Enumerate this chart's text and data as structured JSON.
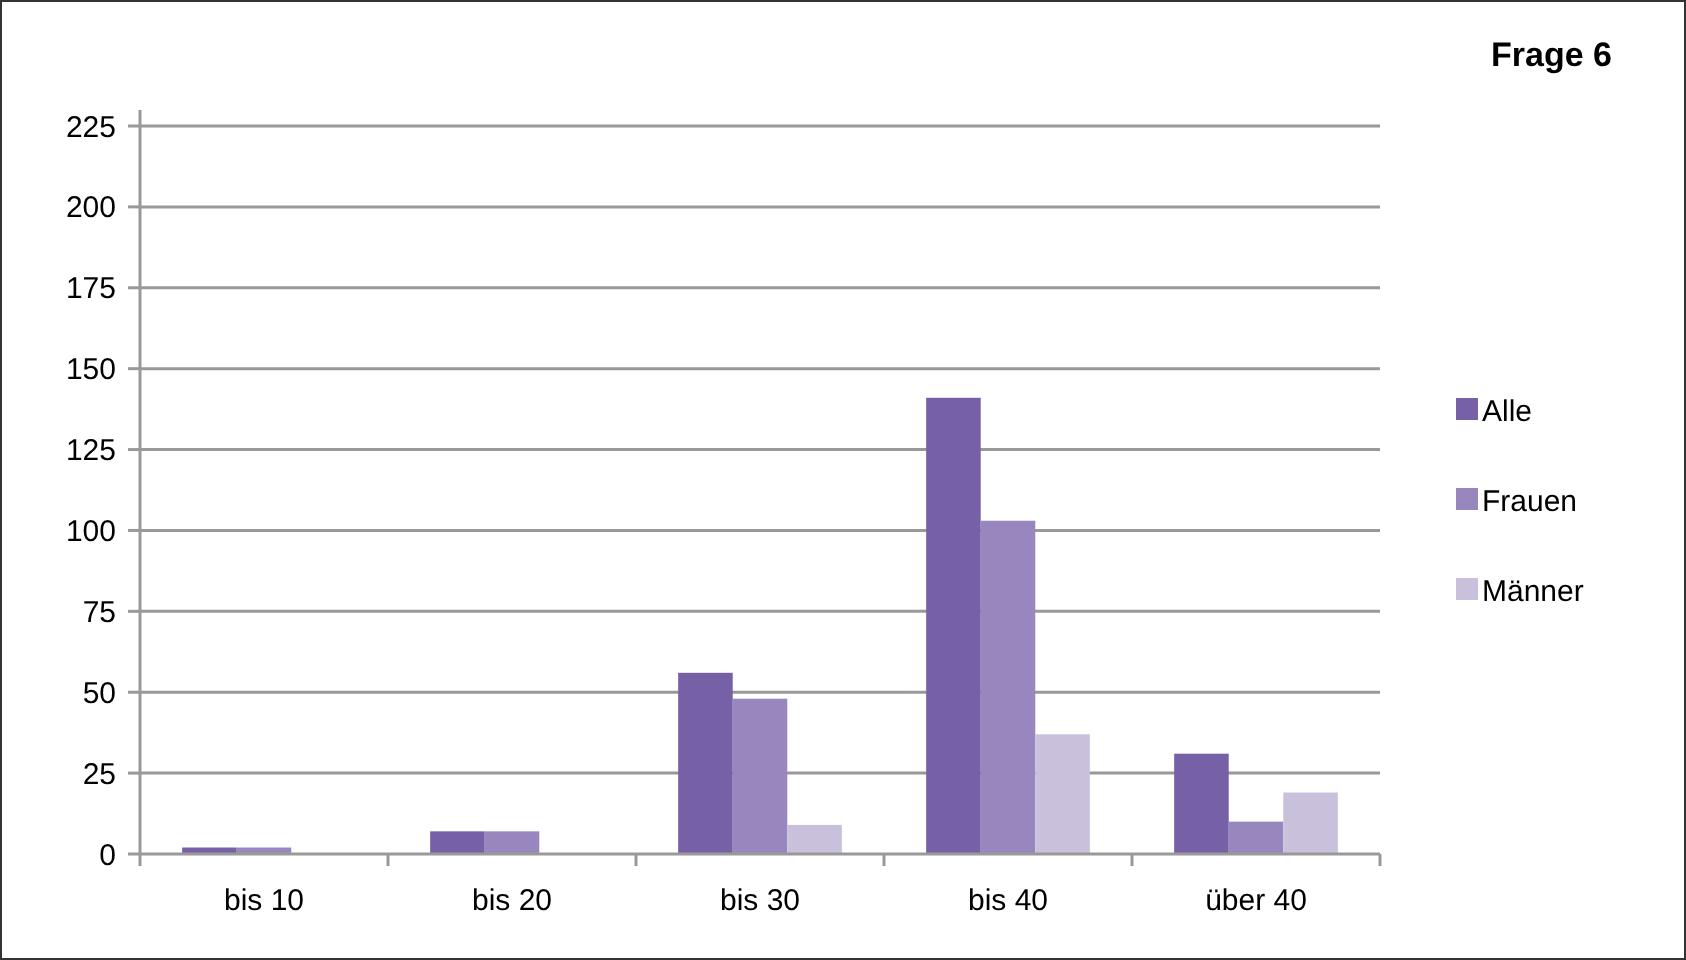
{
  "chart_data": {
    "type": "bar",
    "title": "Frage 6",
    "categories": [
      "bis 10",
      "bis 20",
      "bis 30",
      "bis 40",
      "über 40"
    ],
    "series": [
      {
        "name": "Alle",
        "color": "#7660a6",
        "values": [
          2,
          7,
          56,
          141,
          31
        ]
      },
      {
        "name": "Frauen",
        "color": "#9886bf",
        "values": [
          2,
          7,
          48,
          103,
          10
        ]
      },
      {
        "name": "Männer",
        "color": "#c9c1dc",
        "values": [
          0,
          0,
          9,
          37,
          19
        ]
      }
    ],
    "ylim": [
      0,
      225
    ],
    "yticks": [
      0,
      25,
      50,
      75,
      100,
      125,
      150,
      175,
      200,
      225
    ],
    "grid": "y",
    "legend": "right"
  }
}
